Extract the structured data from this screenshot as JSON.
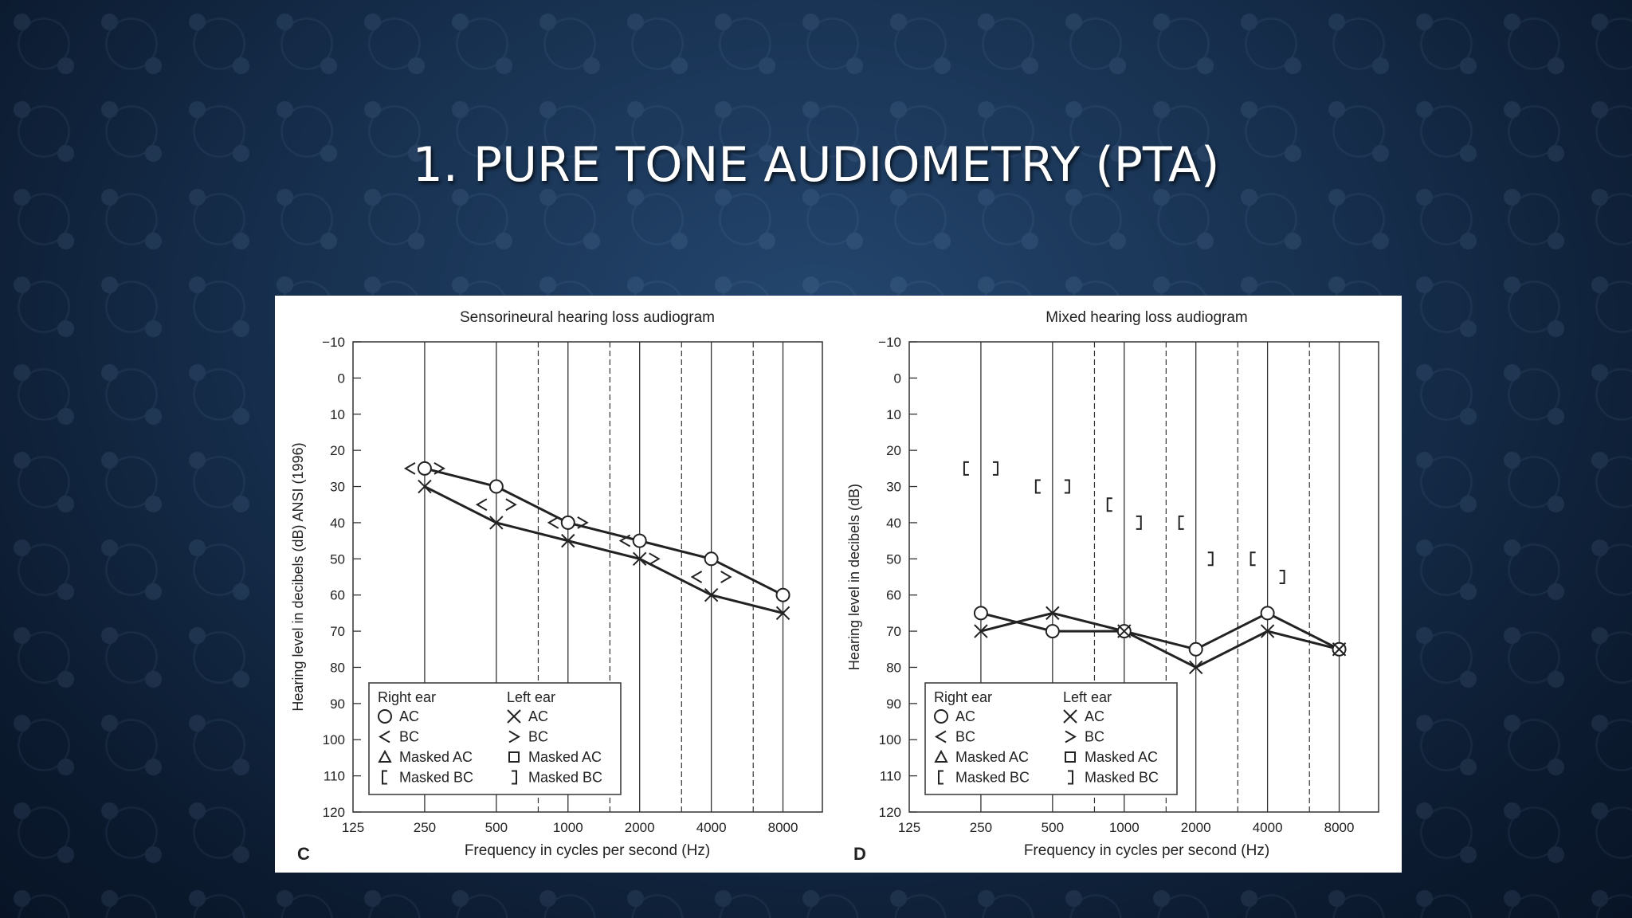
{
  "slide": {
    "title": "1. PURE TONE AUDIOMETRY (PTA)"
  },
  "chart_data": [
    {
      "type": "line",
      "panel_letter": "C",
      "title": "Sensorineural hearing loss audiogram",
      "xlabel": "Frequency in cycles per second (Hz)",
      "ylabel": "Hearing level in decibels (dB) ANSI (1996)",
      "x_ticks": [
        "125",
        "250",
        "500",
        "1000",
        "2000",
        "4000",
        "8000"
      ],
      "y_ticks": [
        "−10",
        "0",
        "10",
        "20",
        "30",
        "40",
        "50",
        "60",
        "70",
        "80",
        "90",
        "100",
        "110",
        "120"
      ],
      "ylim": [
        -10,
        120
      ],
      "y_inverted": true,
      "x_scale": "log2",
      "series": [
        {
          "name": "Right ear AC",
          "symbol": "circle",
          "line": true,
          "x": [
            250,
            500,
            1000,
            2000,
            4000,
            8000
          ],
          "y": [
            25,
            30,
            40,
            45,
            50,
            60
          ]
        },
        {
          "name": "Left ear AC",
          "symbol": "cross",
          "line": true,
          "x": [
            250,
            500,
            1000,
            2000,
            4000,
            8000
          ],
          "y": [
            30,
            40,
            45,
            50,
            60,
            65
          ]
        },
        {
          "name": "Right ear BC",
          "symbol": "<",
          "line": false,
          "x": [
            250,
            500,
            1000,
            2000,
            4000
          ],
          "y": [
            25,
            35,
            40,
            45,
            55
          ]
        },
        {
          "name": "Left ear BC",
          "symbol": ">",
          "line": false,
          "x": [
            250,
            500,
            1000,
            2000,
            4000
          ],
          "y": [
            25,
            35,
            40,
            50,
            55
          ]
        }
      ],
      "legend": {
        "position": "bottom-left",
        "right_header": "Right ear",
        "left_header": "Left ear",
        "right_items": [
          {
            "symbol": "circle",
            "label": "AC"
          },
          {
            "symbol": "<",
            "label": "BC"
          },
          {
            "symbol": "triangle",
            "label": "Masked AC"
          },
          {
            "symbol": "[",
            "label": "Masked BC"
          }
        ],
        "left_items": [
          {
            "symbol": "cross",
            "label": "AC"
          },
          {
            "symbol": ">",
            "label": "BC"
          },
          {
            "symbol": "square",
            "label": "Masked AC"
          },
          {
            "symbol": "]",
            "label": "Masked BC"
          }
        ]
      }
    },
    {
      "type": "line",
      "panel_letter": "D",
      "title": "Mixed hearing loss audiogram",
      "xlabel": "Frequency in cycles per second (Hz)",
      "ylabel": "Hearing level in decibels (dB)",
      "x_ticks": [
        "125",
        "250",
        "500",
        "1000",
        "2000",
        "4000",
        "8000"
      ],
      "y_ticks": [
        "−10",
        "0",
        "10",
        "20",
        "30",
        "40",
        "50",
        "60",
        "70",
        "80",
        "90",
        "100",
        "110",
        "120"
      ],
      "ylim": [
        -10,
        120
      ],
      "y_inverted": true,
      "x_scale": "log2",
      "series": [
        {
          "name": "Right ear AC",
          "symbol": "circle",
          "line": true,
          "x": [
            250,
            500,
            1000,
            2000,
            4000,
            8000
          ],
          "y": [
            65,
            70,
            70,
            75,
            65,
            75
          ]
        },
        {
          "name": "Left ear AC",
          "symbol": "cross",
          "line": true,
          "x": [
            250,
            500,
            1000,
            2000,
            4000,
            8000
          ],
          "y": [
            70,
            65,
            70,
            80,
            70,
            75
          ]
        },
        {
          "name": "Right ear Masked BC",
          "symbol": "[",
          "line": false,
          "x": [
            250,
            500,
            1000,
            2000,
            4000
          ],
          "y": [
            25,
            30,
            35,
            40,
            50
          ]
        },
        {
          "name": "Left ear Masked BC",
          "symbol": "]",
          "line": false,
          "x": [
            250,
            500,
            1000,
            2000,
            4000
          ],
          "y": [
            25,
            30,
            40,
            50,
            55
          ]
        }
      ],
      "legend": {
        "position": "bottom-left",
        "right_header": "Right ear",
        "left_header": "Left ear",
        "right_items": [
          {
            "symbol": "circle",
            "label": "AC"
          },
          {
            "symbol": "<",
            "label": "BC"
          },
          {
            "symbol": "triangle",
            "label": "Masked AC"
          },
          {
            "symbol": "[",
            "label": "Masked BC"
          }
        ],
        "left_items": [
          {
            "symbol": "cross",
            "label": "AC"
          },
          {
            "symbol": ">",
            "label": "BC"
          },
          {
            "symbol": "square",
            "label": "Masked AC"
          },
          {
            "symbol": "]",
            "label": "Masked BC"
          }
        ]
      }
    }
  ]
}
